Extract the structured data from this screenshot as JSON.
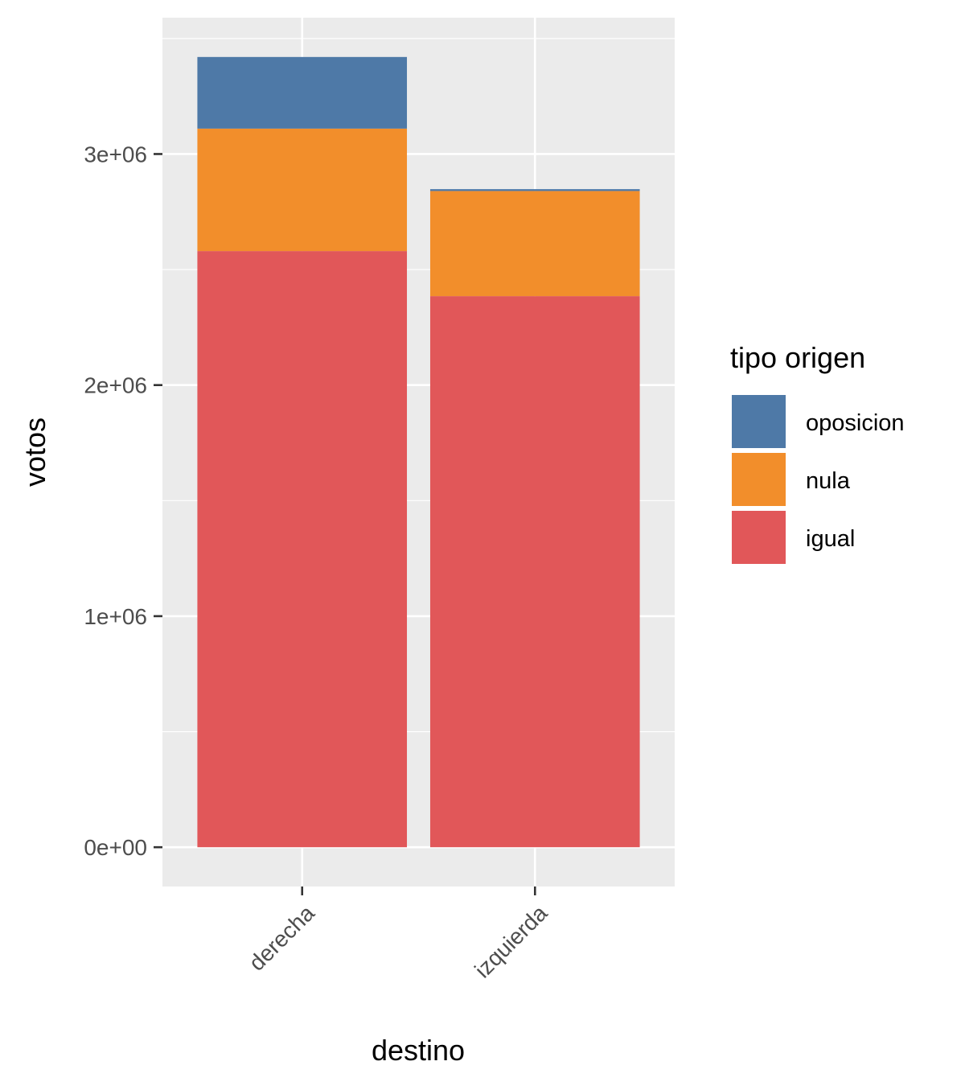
{
  "chart_data": {
    "type": "bar",
    "stacked": true,
    "categories": [
      "derecha",
      "izquierda"
    ],
    "series": [
      {
        "name": "igual",
        "color": "#E15759",
        "values": [
          2580000,
          2385000
        ]
      },
      {
        "name": "nula",
        "color": "#F28E2B",
        "values": [
          530000,
          455000
        ]
      },
      {
        "name": "oposicion",
        "color": "#4E79A7",
        "values": [
          310000,
          8000
        ]
      }
    ],
    "xlabel": "destino",
    "ylabel": "votos",
    "ylim": [
      -170000,
      3590000
    ],
    "yticks": [
      0,
      1000000,
      2000000,
      3000000
    ],
    "ytick_labels": [
      "0e+00",
      "1e+06",
      "2e+06",
      "3e+06"
    ],
    "legend": {
      "title": "tipo origen",
      "placement": "right",
      "entries": [
        "oposicion",
        "nula",
        "igual"
      ]
    },
    "panel_background": "#EBEBEB",
    "grid": true
  }
}
